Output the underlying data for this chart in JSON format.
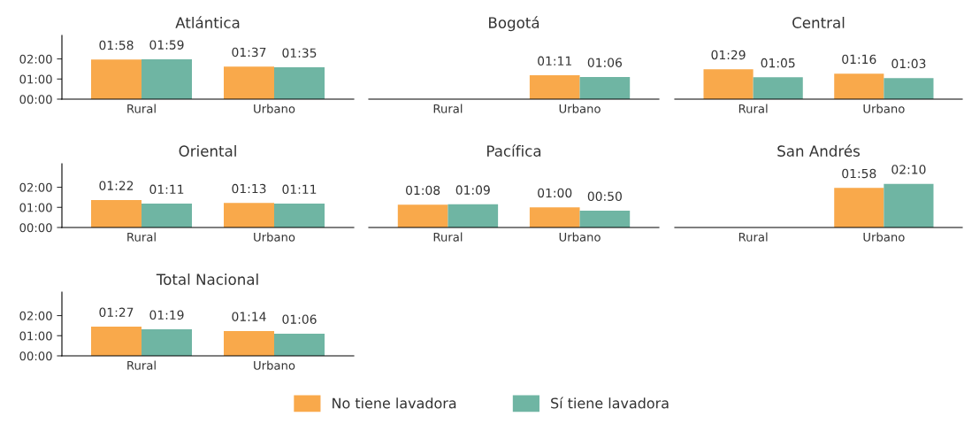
{
  "chart_data": [
    {
      "type": "bar",
      "title": "Atlántica",
      "categories": [
        "Rural",
        "Urbano"
      ],
      "ylim": [
        0,
        190
      ],
      "yticks": [
        {
          "value": 0,
          "label": "00:00"
        },
        {
          "value": 60,
          "label": "01:00"
        },
        {
          "value": 120,
          "label": "02:00"
        }
      ],
      "legend": "bottom",
      "series": [
        {
          "name": "No tiene lavadora",
          "color": "#f9a94b",
          "values": [
            118,
            97
          ],
          "value_labels": [
            "01:58",
            "01:37"
          ]
        },
        {
          "name": "Sí tiene lavadora",
          "color": "#6fb5a3",
          "values": [
            119,
            95
          ],
          "value_labels": [
            "01:59",
            "01:35"
          ]
        }
      ]
    },
    {
      "type": "bar",
      "title": "Bogotá",
      "categories": [
        "Rural",
        "Urbano"
      ],
      "tick_labels": "x",
      "series": [
        {
          "color": "#f9a94b",
          "values": [
            null,
            71
          ],
          "value_labels": [
            null,
            "01:11"
          ]
        },
        {
          "color": "#6fb5a3",
          "values": [
            null,
            66
          ],
          "value_labels": [
            null,
            "01:06"
          ]
        }
      ]
    },
    {
      "type": "bar",
      "title": "Central",
      "categories": [
        "Rural",
        "Urbano"
      ],
      "tick_labels": "x",
      "series": [
        {
          "color": "#f9a94b",
          "values": [
            89,
            76
          ],
          "value_labels": [
            "01:29",
            "01:16"
          ]
        },
        {
          "color": "#6fb5a3",
          "values": [
            65,
            63
          ],
          "value_labels": [
            "01:05",
            "01:03"
          ]
        }
      ]
    },
    {
      "type": "bar",
      "title": "Oriental",
      "categories": [
        "Rural",
        "Urbano"
      ],
      "ylim": [
        0,
        190
      ],
      "yticks": [
        {
          "value": 0,
          "label": "00:00"
        },
        {
          "value": 60,
          "label": "01:00"
        },
        {
          "value": 120,
          "label": "02:00"
        }
      ],
      "series": [
        {
          "color": "#f9a94b",
          "values": [
            82,
            73
          ],
          "value_labels": [
            "01:22",
            "01:13"
          ]
        },
        {
          "color": "#6fb5a3",
          "values": [
            71,
            71
          ],
          "value_labels": [
            "01:11",
            "01:11"
          ]
        }
      ]
    },
    {
      "type": "bar",
      "title": "Pacífica",
      "categories": [
        "Rural",
        "Urbano"
      ],
      "tick_labels": "x",
      "series": [
        {
          "color": "#f9a94b",
          "values": [
            68,
            60
          ],
          "value_labels": [
            "01:08",
            "01:00"
          ]
        },
        {
          "color": "#6fb5a3",
          "values": [
            69,
            50
          ],
          "value_labels": [
            "01:09",
            "00:50"
          ]
        }
      ]
    },
    {
      "type": "bar",
      "title": "San Andrés",
      "categories": [
        "Rural",
        "Urbano"
      ],
      "tick_labels": "x",
      "series": [
        {
          "color": "#f9a94b",
          "values": [
            null,
            118
          ],
          "value_labels": [
            null,
            "01:58"
          ]
        },
        {
          "color": "#6fb5a3",
          "values": [
            null,
            130
          ],
          "value_labels": [
            null,
            "02:10"
          ]
        }
      ]
    },
    {
      "type": "bar",
      "title": "Total Nacional",
      "categories": [
        "Rural",
        "Urbano"
      ],
      "ylim": [
        0,
        190
      ],
      "yticks": [
        {
          "value": 0,
          "label": "00:00"
        },
        {
          "value": 60,
          "label": "01:00"
        },
        {
          "value": 120,
          "label": "02:00"
        }
      ],
      "series": [
        {
          "color": "#f9a94b",
          "values": [
            87,
            74
          ],
          "value_labels": [
            "01:27",
            "01:14"
          ]
        },
        {
          "color": "#6fb5a3",
          "values": [
            79,
            66
          ],
          "value_labels": [
            "01:19",
            "01:06"
          ]
        }
      ]
    }
  ]
}
